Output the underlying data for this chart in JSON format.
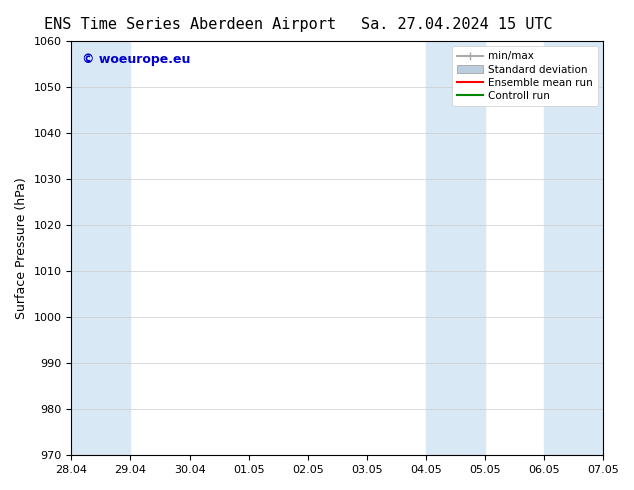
{
  "title": "ENS Time Series Aberdeen Airport",
  "title2": "Sa. 27.04.2024 15 UTC",
  "ylabel": "Surface Pressure (hPa)",
  "ylim": [
    970,
    1060
  ],
  "yticks": [
    970,
    980,
    990,
    1000,
    1010,
    1020,
    1030,
    1040,
    1050,
    1060
  ],
  "xlim_start": 0,
  "xlim_end": 9,
  "xtick_labels": [
    "28.04",
    "29.04",
    "30.04",
    "01.05",
    "02.05",
    "03.05",
    "04.05",
    "05.05",
    "06.05",
    "07.05"
  ],
  "xtick_positions": [
    0,
    1,
    2,
    3,
    4,
    5,
    6,
    7,
    8,
    9
  ],
  "shaded_bands": [
    {
      "x_start": 0.0,
      "x_end": 1.0
    },
    {
      "x_start": 6.0,
      "x_end": 7.0
    },
    {
      "x_start": 8.0,
      "x_end": 9.0
    }
  ],
  "band_color": "#d8e8f5",
  "band_color2": "#cce0f0",
  "watermark": "© woeurope.eu",
  "watermark_color": "#0000cc",
  "legend_entries": [
    {
      "label": "min/max",
      "color": "#aaaaaa",
      "type": "errorbar"
    },
    {
      "label": "Standard deviation",
      "color": "#bbccdd",
      "type": "band"
    },
    {
      "label": "Ensemble mean run",
      "color": "#ff0000",
      "type": "line"
    },
    {
      "label": "Controll run",
      "color": "#008800",
      "type": "line"
    }
  ],
  "bg_color": "#ffffff",
  "grid_color": "#cccccc",
  "title_fontsize": 11,
  "axis_label_fontsize": 9,
  "tick_fontsize": 8
}
